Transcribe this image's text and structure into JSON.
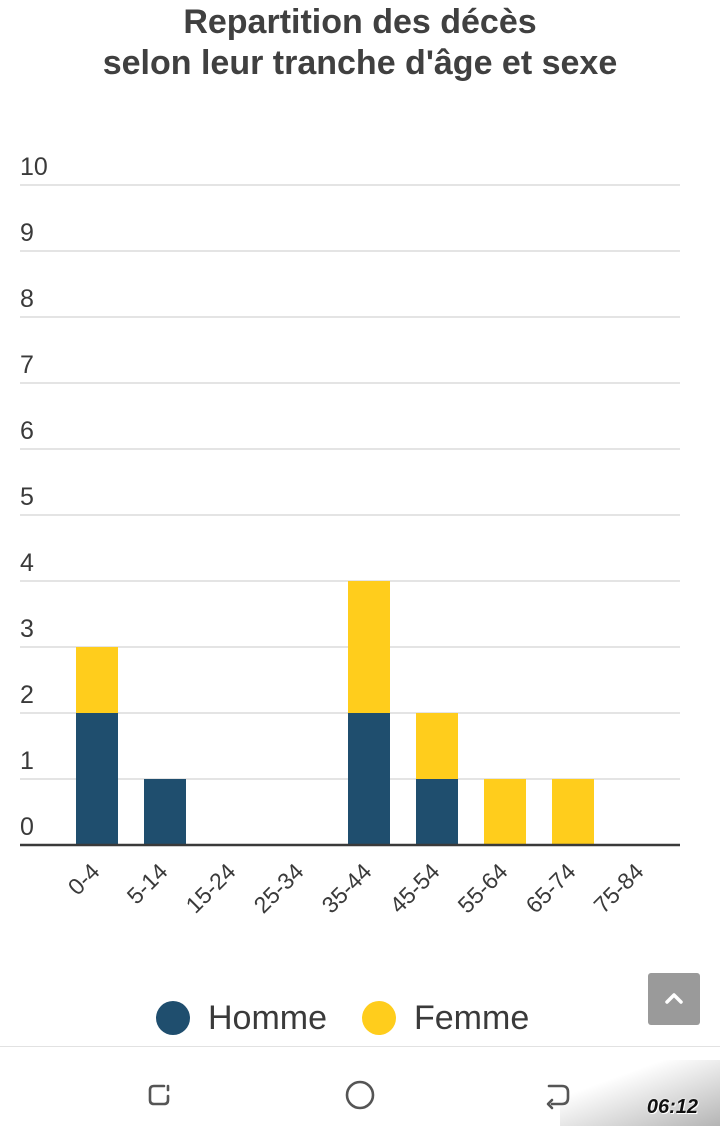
{
  "chart_data": {
    "type": "bar",
    "stacked": true,
    "title_lines": [
      "Repartition des décès",
      "selon leur tranche d'âge et sexe"
    ],
    "categories": [
      "0-4",
      "5-14",
      "15-24",
      "25-34",
      "35-44",
      "45-54",
      "55-64",
      "65-74",
      "75-84"
    ],
    "series": [
      {
        "name": "Homme",
        "color": "#1f4e6e",
        "values": [
          2,
          1,
          0,
          0,
          2,
          1,
          0,
          0,
          0
        ]
      },
      {
        "name": "Femme",
        "color": "#ffcd1c",
        "values": [
          1,
          0,
          0,
          0,
          2,
          1,
          1,
          1,
          0
        ]
      }
    ],
    "yticks": [
      0,
      1,
      2,
      3,
      4,
      5,
      6,
      7,
      8,
      9,
      10
    ],
    "ylim": [
      0,
      10
    ],
    "grid": true,
    "legend_position": "bottom"
  },
  "ui": {
    "scroll_top_icon": "chevron-up-icon",
    "nav_icons": [
      "recent-apps-icon",
      "home-icon",
      "back-icon"
    ],
    "clock": "06:12"
  }
}
